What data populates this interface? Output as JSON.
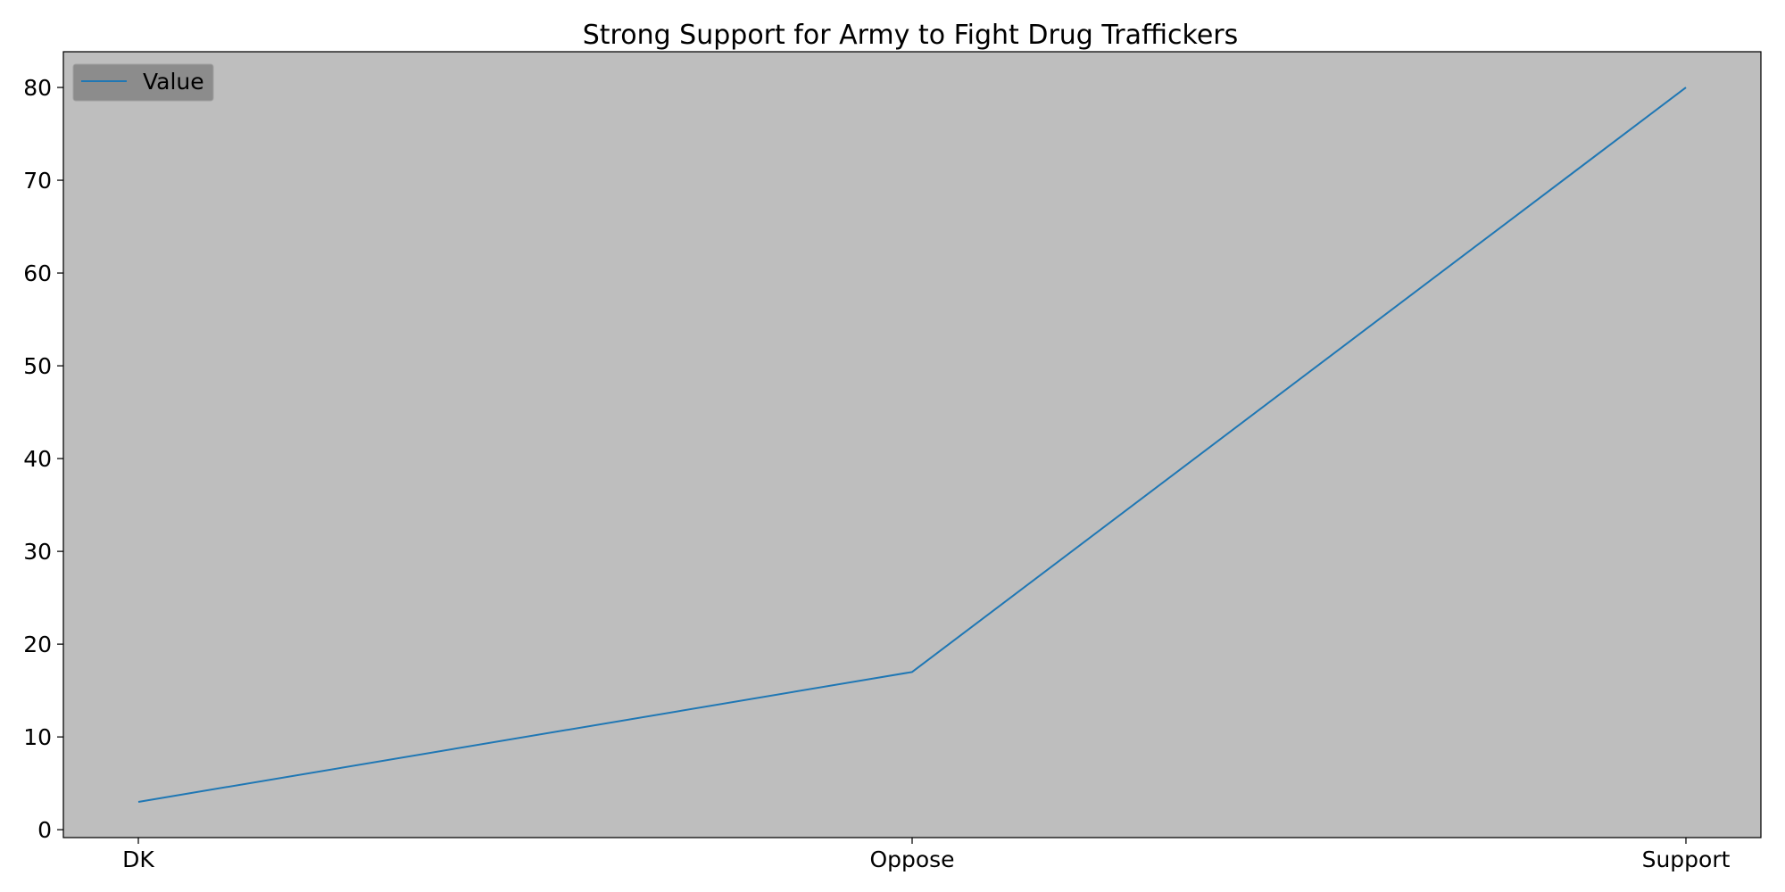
{
  "chart_data": {
    "type": "line",
    "title": "Strong Support for Army to Fight Drug Traffickers",
    "xlabel": "",
    "ylabel": "",
    "categories": [
      "DK",
      "Oppose",
      "Support"
    ],
    "series": [
      {
        "name": "Value",
        "values": [
          3,
          17,
          80
        ]
      }
    ],
    "ylim": [
      -0.85,
      83.85
    ],
    "yticks": [
      0,
      10,
      20,
      30,
      40,
      50,
      60,
      70,
      80
    ],
    "grid": false,
    "legend_position": "upper-left",
    "colors": {
      "line": "#1f77b4",
      "plot_background": "#bebebe",
      "legend_background": "#8c8c8c",
      "page_background": "#ffffff"
    }
  }
}
